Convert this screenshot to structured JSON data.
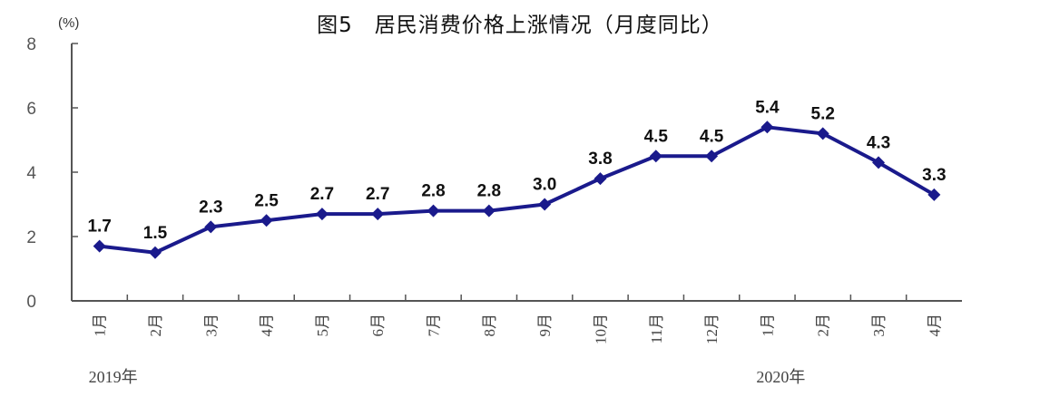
{
  "chart_data": {
    "type": "line",
    "title": "图5　居民消费价格上涨情况（月度同比）",
    "ylabel": "(%)",
    "ylim": [
      0,
      8
    ],
    "yticks": [
      0,
      2,
      4,
      6,
      8
    ],
    "categories": [
      "1月",
      "2月",
      "3月",
      "4月",
      "5月",
      "6月",
      "7月",
      "8月",
      "9月",
      "10月",
      "11月",
      "12月",
      "1月",
      "2月",
      "3月",
      "4月"
    ],
    "year_labels": [
      {
        "text": "2019年",
        "category_index": 0
      },
      {
        "text": "2020年",
        "category_index": 12
      }
    ],
    "values": [
      1.7,
      1.5,
      2.3,
      2.5,
      2.7,
      2.7,
      2.8,
      2.8,
      3.0,
      3.8,
      4.5,
      4.5,
      5.4,
      5.2,
      4.3,
      3.3
    ],
    "data_labels": [
      "1.7",
      "1.5",
      "2.3",
      "2.5",
      "2.7",
      "2.7",
      "2.8",
      "2.8",
      "3.0",
      "3.8",
      "4.5",
      "4.5",
      "5.4",
      "5.2",
      "4.3",
      "3.3"
    ],
    "grid": false,
    "marker": "diamond",
    "line_color": "#1a1a8c"
  }
}
